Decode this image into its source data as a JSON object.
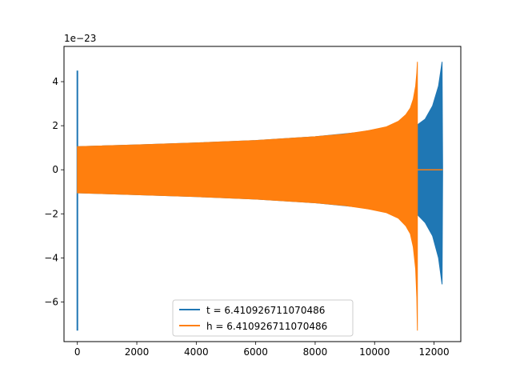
{
  "chart_data": {
    "type": "line",
    "title": "",
    "xlabel": "",
    "ylabel": "",
    "y_offset_label": "1e−23",
    "xlim": [
      -450,
      12900
    ],
    "ylim": [
      -7.8,
      5.6
    ],
    "xticks": [
      0,
      2000,
      4000,
      6000,
      8000,
      10000,
      12000
    ],
    "xtick_labels": [
      "0",
      "2000",
      "4000",
      "6000",
      "8000",
      "10000",
      "12000"
    ],
    "yticks": [
      -6,
      -4,
      -2,
      0,
      2,
      4
    ],
    "ytick_labels": [
      "−6",
      "−4",
      "−2",
      "0",
      "2",
      "4"
    ],
    "grid": false,
    "legend_position": "bottom-center",
    "series": [
      {
        "name": "t = 6.410926711070486",
        "color": "#1f77b4",
        "envelope": {
          "x": [
            0,
            60,
            500,
            2000,
            4000,
            6000,
            8000,
            9500,
            10500,
            11100,
            11450,
            11700,
            11950,
            12150,
            12270,
            12290
          ],
          "upper": [
            1.05,
            1.05,
            1.07,
            1.13,
            1.22,
            1.33,
            1.5,
            1.7,
            1.95,
            2.02,
            2.05,
            2.3,
            2.9,
            3.8,
            4.9,
            0.0
          ],
          "lower": [
            -1.05,
            -1.05,
            -1.07,
            -1.13,
            -1.22,
            -1.33,
            -1.5,
            -1.7,
            -1.95,
            -2.02,
            -2.05,
            -2.4,
            -3.0,
            -4.0,
            -5.2,
            0.0
          ]
        },
        "spike_at_start": {
          "x": 0,
          "max": 4.5,
          "min": -7.3
        }
      },
      {
        "name": "h = 6.410926711070486",
        "color": "#ff7f0e",
        "envelope": {
          "x": [
            0,
            60,
            500,
            2000,
            4000,
            6000,
            8000,
            9000,
            9800,
            10400,
            10800,
            11050,
            11200,
            11300,
            11380,
            11420,
            11440
          ],
          "upper": [
            1.05,
            1.05,
            1.07,
            1.13,
            1.22,
            1.33,
            1.5,
            1.62,
            1.78,
            1.95,
            2.2,
            2.5,
            2.8,
            3.2,
            3.8,
            4.4,
            4.9
          ],
          "lower": [
            -1.05,
            -1.05,
            -1.07,
            -1.13,
            -1.22,
            -1.33,
            -1.5,
            -1.62,
            -1.78,
            -1.95,
            -2.2,
            -2.55,
            -2.9,
            -3.5,
            -4.5,
            -5.8,
            -7.3
          ]
        },
        "flat_tail": {
          "x_start": 11440,
          "x_end": 12290,
          "y": 0.0
        }
      }
    ]
  }
}
